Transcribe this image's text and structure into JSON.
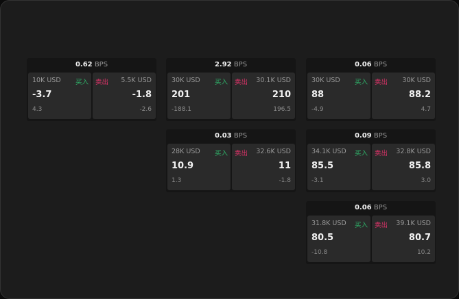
{
  "buy_label": "买入",
  "sell_label": "卖出",
  "unit": "BPS",
  "colors": {
    "buy": "#2fb36a",
    "sell": "#e0336a"
  },
  "cards": [
    {
      "spread": "0.62",
      "buy": {
        "size": "10K USD",
        "price": "-3.7",
        "change": "4.3"
      },
      "sell": {
        "size": "5.5K USD",
        "price": "-1.8",
        "change": "-2.6"
      }
    },
    {
      "spread": "2.92",
      "buy": {
        "size": "30K USD",
        "price": "201",
        "change": "-188.1"
      },
      "sell": {
        "size": "30.1K USD",
        "price": "210",
        "change": "196.5"
      }
    },
    {
      "spread": "0.06",
      "buy": {
        "size": "30K USD",
        "price": "88",
        "change": "-4.9"
      },
      "sell": {
        "size": "30K USD",
        "price": "88.2",
        "change": "4.7"
      }
    },
    {
      "spread": "0.03",
      "buy": {
        "size": "28K USD",
        "price": "10.9",
        "change": "1.3"
      },
      "sell": {
        "size": "32.6K USD",
        "price": "11",
        "change": "-1.8"
      }
    },
    {
      "spread": "0.09",
      "buy": {
        "size": "34.1K USD",
        "price": "85.5",
        "change": "-3.1"
      },
      "sell": {
        "size": "32.8K USD",
        "price": "85.8",
        "change": "3.0"
      }
    },
    {
      "spread": "0.06",
      "buy": {
        "size": "31.8K USD",
        "price": "80.5",
        "change": "-10.8"
      },
      "sell": {
        "size": "39.1K USD",
        "price": "80.7",
        "change": "10.2"
      }
    }
  ]
}
